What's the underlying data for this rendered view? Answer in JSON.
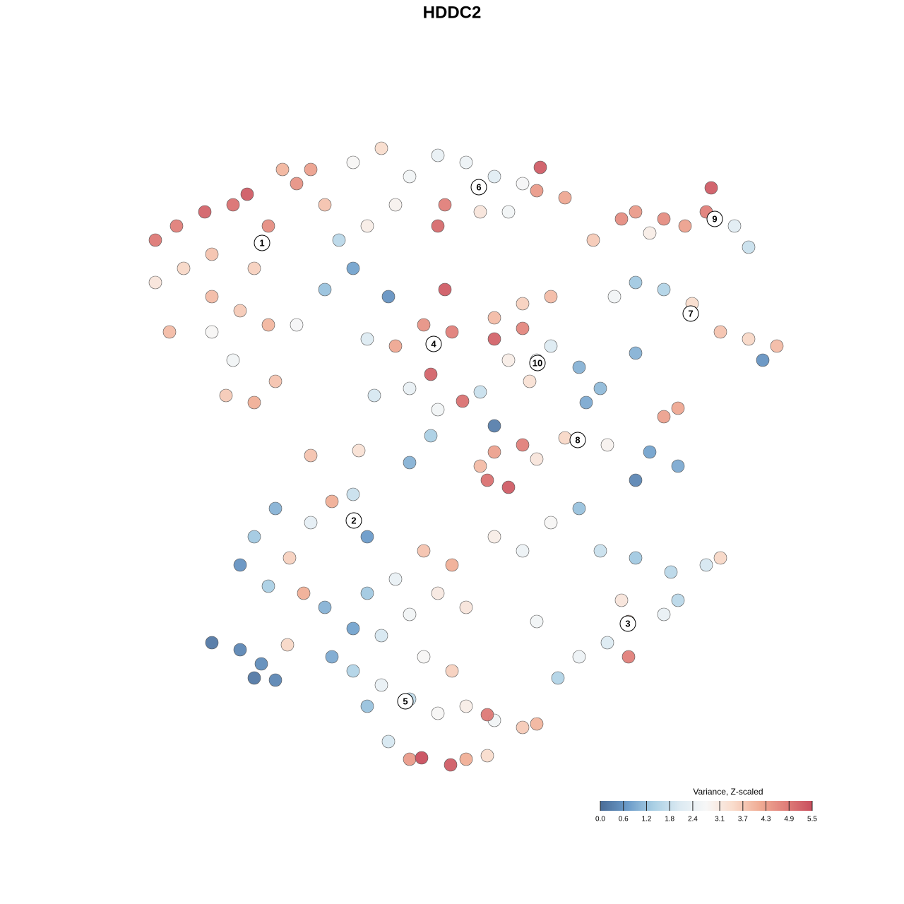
{
  "chart_data": {
    "type": "scatter",
    "title": "HDDC2",
    "xlim": [
      0,
      128
    ],
    "ylim": [
      0,
      128
    ],
    "x": [
      29,
      33,
      25,
      22,
      35,
      38,
      42,
      44,
      40,
      46,
      36,
      30,
      26,
      22,
      30,
      34,
      38,
      30,
      33,
      32,
      36,
      39,
      42,
      24,
      50,
      54,
      58,
      62,
      66,
      70,
      74,
      68,
      62,
      63,
      76,
      80,
      76.5,
      52,
      56,
      48,
      46,
      50,
      72,
      84,
      90,
      94,
      97,
      100,
      100.7,
      104,
      106,
      88,
      92,
      90,
      94,
      98,
      102,
      106,
      110,
      108,
      87,
      55,
      52,
      56,
      60,
      63,
      64,
      61,
      58,
      53,
      62,
      65.5,
      70,
      74,
      78,
      70,
      74,
      68,
      76,
      75,
      78,
      72,
      82,
      85,
      83,
      90,
      94,
      96,
      80,
      74,
      70,
      68,
      69,
      72,
      76,
      70,
      92,
      96,
      90,
      86,
      44,
      50.8,
      58,
      61,
      47,
      44,
      39,
      36,
      34,
      38,
      41,
      50,
      52,
      43,
      46,
      30,
      34,
      37,
      36,
      40.7,
      39,
      70,
      74,
      78,
      82,
      85,
      90,
      95,
      100,
      102,
      88,
      89,
      86,
      82,
      89,
      94,
      79,
      76,
      96,
      60,
      64,
      56,
      62,
      52,
      58,
      66,
      50,
      54,
      60,
      64,
      50,
      54,
      58,
      62,
      66,
      70,
      74,
      76,
      58,
      59.7,
      63.8,
      66,
      69,
      55,
      69,
      52,
      47
    ],
    "y": [
      98,
      99,
      96,
      94,
      100.5,
      96,
      102,
      104,
      104,
      99,
      90,
      92,
      90,
      88,
      86,
      84,
      82,
      81,
      77,
      72,
      71,
      74,
      82,
      81,
      105,
      107,
      103,
      106,
      105,
      103,
      102,
      98,
      96,
      99,
      101,
      100,
      104.3,
      96,
      99,
      94,
      87,
      90,
      98,
      94,
      98,
      97,
      96,
      98,
      101.4,
      96,
      93,
      97,
      95,
      88,
      87,
      85,
      81,
      80,
      79,
      77,
      86,
      86,
      80,
      79,
      82,
      87,
      81,
      75,
      73,
      72,
      70,
      71.2,
      83,
      85,
      86,
      80,
      81.5,
      72.5,
      77,
      74,
      79,
      77,
      76,
      73,
      71,
      78,
      69,
      70.2,
      66,
      65,
      64,
      62,
      60,
      59,
      63,
      67.7,
      64,
      62,
      60,
      65,
      63.5,
      64.2,
      62.5,
      66.3,
      57,
      54,
      56,
      52,
      48,
      45,
      49,
      58,
      52,
      44,
      42,
      37,
      36,
      34,
      32,
      36.7,
      31.7,
      52,
      50,
      54,
      56,
      50,
      49,
      47,
      48,
      49,
      43,
      40,
      37,
      35,
      35,
      41,
      32,
      40,
      43,
      50,
      48,
      46,
      44,
      44,
      41,
      42,
      39,
      38,
      35,
      33,
      33,
      31,
      29,
      27,
      28,
      26,
      25,
      25.5,
      20.5,
      20.7,
      19.7,
      20.5,
      21,
      23,
      26.8,
      28,
      35
    ],
    "values": [
      5.2,
      5.0,
      4.8,
      4.9,
      5.3,
      4.6,
      4.5,
      4.3,
      4.0,
      3.8,
      3.6,
      3.8,
      3.5,
      3.2,
      3.9,
      3.7,
      4.0,
      2.8,
      2.6,
      3.7,
      4.1,
      3.8,
      2.7,
      3.9,
      2.8,
      3.4,
      2.6,
      2.4,
      2.5,
      2.2,
      2.7,
      3.2,
      5.1,
      4.8,
      4.4,
      4.2,
      5.3,
      3.0,
      2.9,
      1.6,
      1.2,
      0.8,
      2.6,
      3.7,
      4.4,
      4.6,
      4.3,
      4.8,
      5.3,
      2.2,
      1.8,
      4.6,
      3.0,
      1.3,
      1.5,
      3.4,
      3.8,
      3.5,
      3.9,
      0.6,
      2.6,
      0.6,
      2.1,
      4.2,
      4.5,
      5.3,
      4.8,
      5.2,
      2.4,
      2.0,
      2.6,
      5.0,
      3.9,
      3.6,
      3.9,
      5.2,
      4.7,
      1.8,
      2.6,
      3.3,
      2.1,
      3.0,
      1.0,
      1.1,
      0.9,
      1.0,
      4.3,
      4.2,
      3.5,
      4.8,
      4.3,
      3.9,
      5.0,
      5.3,
      3.2,
      0.3,
      0.8,
      0.9,
      0.4,
      2.9,
      3.8,
      3.3,
      1.0,
      1.4,
      4.1,
      2.3,
      1.0,
      1.3,
      0.6,
      1.4,
      3.6,
      1.8,
      0.7,
      4.1,
      1.0,
      0.2,
      0.4,
      0.5,
      0.2,
      3.5,
      0.4,
      3.0,
      2.5,
      2.8,
      1.2,
      1.8,
      1.3,
      1.6,
      2.0,
      3.5,
      3.2,
      3.6,
      2.1,
      2.5,
      4.8,
      2.4,
      1.5,
      2.6,
      1.6,
      3.8,
      4.1,
      2.4,
      3.1,
      1.3,
      2.6,
      3.2,
      0.8,
      2.0,
      2.8,
      3.6,
      1.5,
      2.4,
      1.7,
      2.8,
      3.0,
      2.6,
      3.7,
      4.0,
      4.4,
      5.5,
      5.3,
      4.1,
      3.4,
      2.0,
      4.9,
      1.2,
      0.9
    ],
    "annotations": [
      {
        "text": "1",
        "x": 37.1,
        "y": 93.6
      },
      {
        "text": "2",
        "x": 50.1,
        "y": 54.3
      },
      {
        "text": "3",
        "x": 88.9,
        "y": 39.7
      },
      {
        "text": "4",
        "x": 61.4,
        "y": 79.3
      },
      {
        "text": "5",
        "x": 57.4,
        "y": 28.7
      },
      {
        "text": "6",
        "x": 67.8,
        "y": 101.5
      },
      {
        "text": "7",
        "x": 97.8,
        "y": 83.6
      },
      {
        "text": "8",
        "x": 81.8,
        "y": 65.7
      },
      {
        "text": "9",
        "x": 101.2,
        "y": 97
      },
      {
        "text": "10",
        "x": 76.1,
        "y": 76.6
      }
    ],
    "colorbar": {
      "title": "Variance, Z-scaled",
      "lim": [
        0,
        5.5
      ],
      "ticks": [
        {
          "value": 0,
          "label": "0.0"
        },
        0.6,
        1.2,
        1.8,
        2.4,
        3.1,
        3.7,
        4.3,
        4.9,
        5.5
      ],
      "colors": [
        "#4a6c97",
        "#6a9ac8",
        "#a9cfe4",
        "#dceaf2",
        "#f7f7f7",
        "#f9dccc",
        "#f0ad95",
        "#e07f7a",
        "#c94f5e"
      ]
    }
  }
}
